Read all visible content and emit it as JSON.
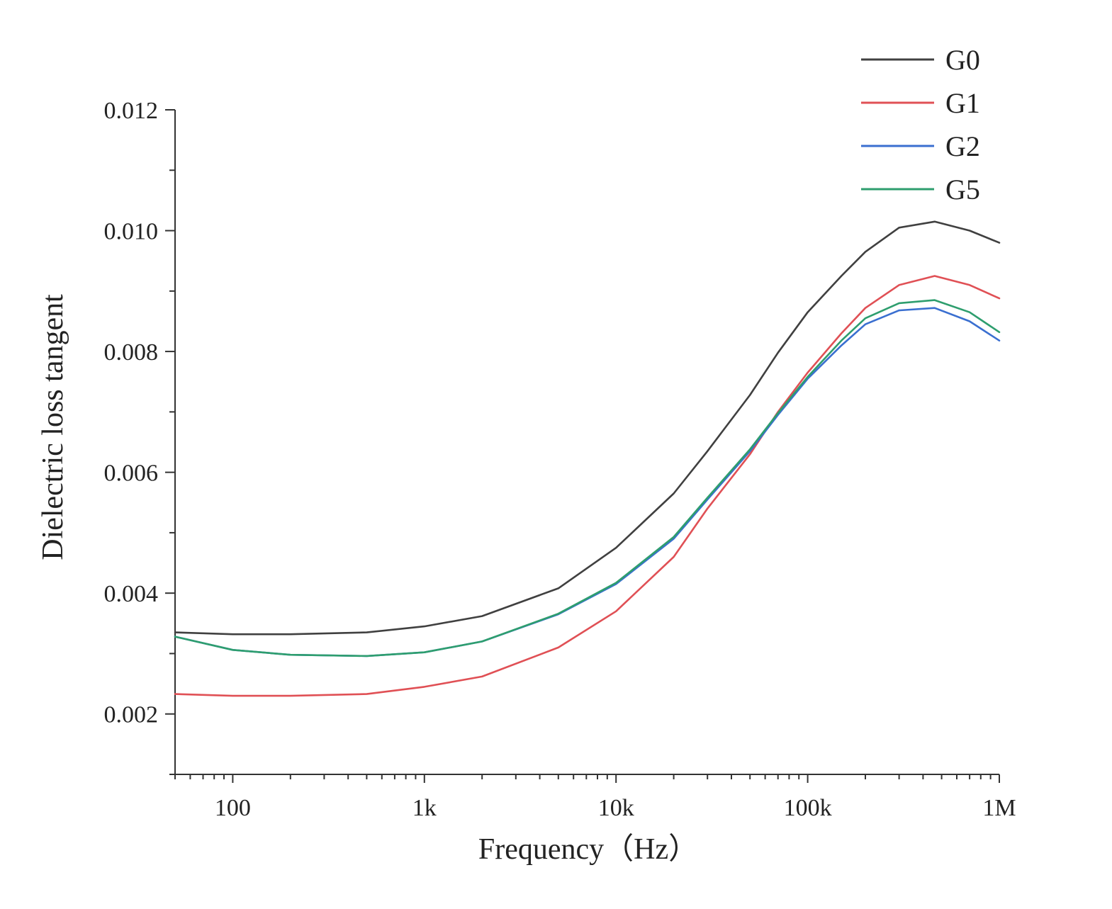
{
  "chart_data": {
    "type": "line",
    "title": "",
    "xlabel": "Frequency（Hz）",
    "ylabel": "Dielectric loss tangent",
    "xscale": "log",
    "xlim": [
      50,
      1000000
    ],
    "ylim": [
      0.001,
      0.012
    ],
    "grid": false,
    "legend_position": "top-right",
    "xticks": [
      {
        "value": 100,
        "label": "100"
      },
      {
        "value": 1000,
        "label": "1k"
      },
      {
        "value": 10000,
        "label": "10k"
      },
      {
        "value": 100000,
        "label": "100k"
      },
      {
        "value": 1000000,
        "label": "1M"
      }
    ],
    "yticks": [
      {
        "value": 0.002,
        "label": "0.002"
      },
      {
        "value": 0.004,
        "label": "0.004"
      },
      {
        "value": 0.006,
        "label": "0.006"
      },
      {
        "value": 0.008,
        "label": "0.008"
      },
      {
        "value": 0.01,
        "label": "0.010"
      },
      {
        "value": 0.012,
        "label": "0.012"
      }
    ],
    "x": [
      50,
      100,
      200,
      500,
      1000,
      2000,
      5000,
      10000,
      20000,
      30000,
      50000,
      70000,
      100000,
      150000,
      200000,
      300000,
      460000,
      700000,
      1000000
    ],
    "series": [
      {
        "name": "G0",
        "color": "#404040",
        "values": [
          0.00335,
          0.00332,
          0.00332,
          0.00335,
          0.00345,
          0.00362,
          0.00408,
          0.00475,
          0.00565,
          0.00635,
          0.00728,
          0.00798,
          0.00865,
          0.00925,
          0.00965,
          0.01005,
          0.01015,
          0.01,
          0.0098
        ]
      },
      {
        "name": "G1",
        "color": "#e05055",
        "values": [
          0.00233,
          0.0023,
          0.0023,
          0.00233,
          0.00245,
          0.00262,
          0.0031,
          0.0037,
          0.0046,
          0.0054,
          0.0063,
          0.007,
          0.00765,
          0.0083,
          0.00872,
          0.0091,
          0.00925,
          0.0091,
          0.00888
        ]
      },
      {
        "name": "G2",
        "color": "#3a6fd0",
        "values": [
          0.00328,
          0.00306,
          0.00298,
          0.00296,
          0.00302,
          0.0032,
          0.00365,
          0.00415,
          0.0049,
          0.00555,
          0.00635,
          0.00695,
          0.00755,
          0.0081,
          0.00845,
          0.00868,
          0.00872,
          0.0085,
          0.00818
        ]
      },
      {
        "name": "G5",
        "color": "#2e9e6e",
        "values": [
          0.00328,
          0.00306,
          0.00298,
          0.00296,
          0.00302,
          0.0032,
          0.00366,
          0.00417,
          0.00493,
          0.00558,
          0.00638,
          0.00698,
          0.00758,
          0.00818,
          0.00855,
          0.0088,
          0.00885,
          0.00865,
          0.00832
        ]
      }
    ]
  }
}
